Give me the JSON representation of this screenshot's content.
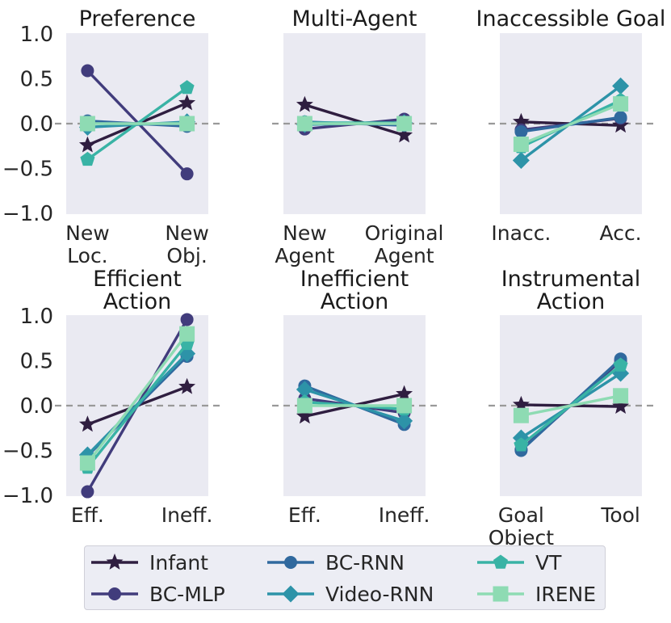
{
  "figure": {
    "background": "#ffffff",
    "axes_background": "#eaeaf2",
    "zero_line_color": "#999999",
    "text_color": "#262626",
    "title_color": "#1a1a1a"
  },
  "legend": {
    "entries": [
      {
        "label": "Infant",
        "marker": "star",
        "color": "#2f1e40"
      },
      {
        "label": "BC-MLP",
        "marker": "circle",
        "color": "#413c7c"
      },
      {
        "label": "BC-RNN",
        "marker": "circle",
        "color": "#30699e"
      },
      {
        "label": "Video-RNN",
        "marker": "diamond",
        "color": "#2d93a8"
      },
      {
        "label": "VT",
        "marker": "pentagon",
        "color": "#39b3a5"
      },
      {
        "label": "IRENE",
        "marker": "square",
        "color": "#8edbb3"
      }
    ]
  },
  "chart_data": {
    "type": "line",
    "subtype": "slope-chart-grid",
    "grid": {
      "rows": 2,
      "cols": 3
    },
    "ylim": [
      -1.01,
      1.01
    ],
    "ytick_values": [
      1.0,
      0.5,
      0.0,
      -0.5,
      -1.0
    ],
    "ytick_labels": [
      "1.0",
      "0.5",
      "0.0",
      "−0.5",
      "−1.0"
    ],
    "zero_reference_line": true,
    "legend_position": "bottom",
    "series_names": [
      "Infant",
      "BC-MLP",
      "BC-RNN",
      "Video-RNN",
      "VT",
      "IRENE"
    ],
    "plots": [
      {
        "title": [
          "Preference"
        ],
        "categories": [
          [
            "New",
            "Loc."
          ],
          [
            "New",
            "Obj."
          ]
        ],
        "series": {
          "Infant": [
            -0.24,
            0.23
          ],
          "BC-MLP": [
            0.59,
            -0.56
          ],
          "BC-RNN": [
            0.03,
            -0.03
          ],
          "Video-RNN": [
            -0.04,
            0.02
          ],
          "VT": [
            -0.4,
            0.4
          ],
          "IRENE": [
            0.0,
            0.0
          ]
        }
      },
      {
        "title": [
          "Multi-Agent"
        ],
        "categories": [
          [
            "New",
            "Agent"
          ],
          [
            "Original",
            "Agent"
          ]
        ],
        "series": {
          "Infant": [
            0.21,
            -0.13
          ],
          "BC-MLP": [
            -0.06,
            0.05
          ],
          "BC-RNN": [
            0.02,
            -0.02
          ],
          "Video-RNN": [
            -0.01,
            0.01
          ],
          "VT": [
            0.01,
            0.01
          ],
          "IRENE": [
            0.0,
            0.0
          ]
        }
      },
      {
        "title": [
          "Inaccessible Goal"
        ],
        "categories": [
          [
            "Inacc."
          ],
          [
            "Acc."
          ]
        ],
        "series": {
          "Infant": [
            0.02,
            -0.02
          ],
          "BC-MLP": [
            -0.07,
            0.06
          ],
          "BC-RNN": [
            -0.09,
            0.07
          ],
          "Video-RNN": [
            -0.41,
            0.42
          ],
          "VT": [
            -0.26,
            0.26
          ],
          "IRENE": [
            -0.23,
            0.22
          ]
        }
      },
      {
        "title": [
          "Efficient",
          "Action"
        ],
        "categories": [
          [
            "Eff."
          ],
          [
            "Ineff."
          ]
        ],
        "series": {
          "Infant": [
            -0.21,
            0.21
          ],
          "BC-MLP": [
            -0.96,
            0.96
          ],
          "BC-RNN": [
            -0.56,
            0.55
          ],
          "Video-RNN": [
            -0.55,
            0.58
          ],
          "VT": [
            -0.69,
            0.69
          ],
          "IRENE": [
            -0.64,
            0.8
          ]
        }
      },
      {
        "title": [
          "Inefficient",
          "Action"
        ],
        "categories": [
          [
            "Eff."
          ],
          [
            "Ineff."
          ]
        ],
        "series": {
          "Infant": [
            -0.12,
            0.13
          ],
          "BC-MLP": [
            0.08,
            -0.08
          ],
          "BC-RNN": [
            0.22,
            -0.21
          ],
          "Video-RNN": [
            0.18,
            -0.17
          ],
          "VT": [
            0.04,
            -0.04
          ],
          "IRENE": [
            0.0,
            0.0
          ]
        }
      },
      {
        "title": [
          "Instrumental",
          "Action"
        ],
        "categories": [
          [
            "Goal",
            "Object"
          ],
          [
            "Tool"
          ]
        ],
        "series": {
          "Infant": [
            0.01,
            -0.01
          ],
          "BC-MLP": [
            -0.49,
            0.5
          ],
          "BC-RNN": [
            -0.5,
            0.52
          ],
          "Video-RNN": [
            -0.36,
            0.36
          ],
          "VT": [
            -0.44,
            0.45
          ],
          "IRENE": [
            -0.11,
            0.11
          ]
        }
      }
    ]
  }
}
